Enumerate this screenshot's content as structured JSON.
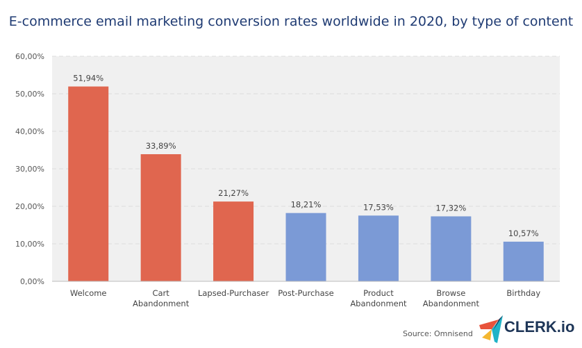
{
  "chart_data": {
    "type": "bar",
    "title": "E-commerce email marketing conversion rates worldwide in 2020, by type of content",
    "categories": [
      [
        "Welcome"
      ],
      [
        "Cart",
        "Abandonment"
      ],
      [
        "Lapsed-Purchaser"
      ],
      [
        "Post-Purchase"
      ],
      [
        "Product",
        "Abandonment"
      ],
      [
        "Browse",
        "Abandonment"
      ],
      [
        "Birthday"
      ]
    ],
    "values": [
      51.94,
      33.89,
      21.27,
      18.21,
      17.53,
      17.32,
      10.57
    ],
    "data_labels": [
      "51,94%",
      "33,89%",
      "21,27%",
      "18,21%",
      "17,53%",
      "17,32%",
      "10,57%"
    ],
    "bar_colors": [
      "#e0664f",
      "#e0664f",
      "#e0664f",
      "#7b9ad6",
      "#7b9ad6",
      "#7b9ad6",
      "#7b9ad6"
    ],
    "ylim": [
      0,
      60
    ],
    "yticks": [
      0,
      10,
      20,
      30,
      40,
      50,
      60
    ],
    "ytick_labels": [
      "0,00%",
      "10,00%",
      "20,00%",
      "30,00%",
      "40,00%",
      "50,00%",
      "60,00%"
    ],
    "grid": true,
    "plot_background": "#f0f0f0"
  },
  "source": "Source: Omnisend",
  "logo": {
    "text": "CLERK.io"
  }
}
